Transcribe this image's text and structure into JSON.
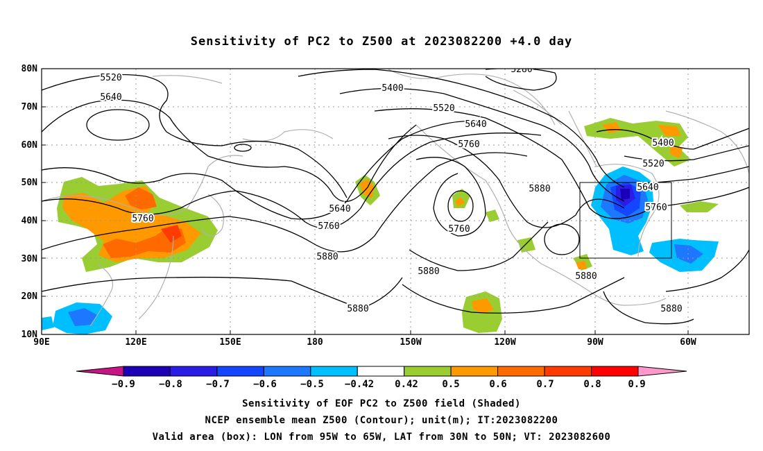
{
  "title": "Sensitivity of PC2 to Z500 at 2023082200 +4.0 day",
  "lat_ticks": [
    "80N",
    "70N",
    "60N",
    "50N",
    "40N",
    "30N",
    "20N",
    "10N"
  ],
  "lon_ticks": [
    "90E",
    "120E",
    "150E",
    "180",
    "150W",
    "120W",
    "90W",
    "60W"
  ],
  "contour_labels": [
    "5520",
    "5640",
    "5400",
    "5520",
    "5640",
    "5760",
    "5280",
    "5880",
    "5640",
    "5760",
    "5880",
    "5760",
    "5880",
    "5880",
    "5880",
    "5400",
    "5520",
    "5640",
    "5760",
    "5760",
    "5880",
    "5880"
  ],
  "colorbar": {
    "labels": [
      "−0.9",
      "−0.8",
      "−0.7",
      "−0.6",
      "−0.5",
      "−0.42",
      "0.42",
      "0.5",
      "0.6",
      "0.7",
      "0.8",
      "0.9"
    ],
    "colors": [
      "#1c00b8",
      "#2a1ee6",
      "#1446ff",
      "#1e78ff",
      "#00bfff",
      "#ffffff",
      "#9acd32",
      "#ff9900",
      "#ff6a00",
      "#ff3c00",
      "#ff0000"
    ],
    "low_extend_color": "#c71585",
    "high_extend_color": "#ff99cc"
  },
  "captions": [
    "Sensitivity of EOF PC2 to Z500 field (Shaded)",
    "NCEP ensemble mean Z500 (Contour); unit(m); IT:2023082200",
    "Valid area (box): LON from 95W to 65W, LAT from 30N to 50N; VT: 2023082600"
  ]
}
